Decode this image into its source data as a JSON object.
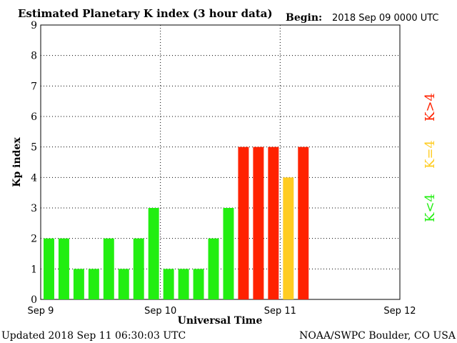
{
  "chart_data": {
    "type": "bar",
    "title": "Estimated Planetary K index (3 hour data)",
    "begin_label": "Begin:",
    "begin_value": "2018 Sep 09 0000 UTC",
    "xlabel": "Universal Time",
    "ylabel": "Kp index",
    "x_ticks": [
      "Sep 9",
      "Sep 10",
      "Sep 11",
      "Sep 12"
    ],
    "y_ticks": [
      "0",
      "1",
      "2",
      "3",
      "4",
      "5",
      "6",
      "7",
      "8",
      "9"
    ],
    "ylim": [
      0,
      9
    ],
    "slots_total": 24,
    "values": [
      2,
      2,
      1,
      1,
      2,
      1,
      2,
      3,
      1,
      1,
      1,
      2,
      3,
      5,
      5,
      5,
      4,
      5
    ],
    "grid": "dotted",
    "legend": [
      {
        "label": "K<4",
        "color": "#22ee11"
      },
      {
        "label": "K=4",
        "color": "#ffcc22"
      },
      {
        "label": "K>4",
        "color": "#ff2200"
      }
    ]
  },
  "footer": {
    "updated": "Updated 2018 Sep 11 06:30:03 UTC",
    "source": "NOAA/SWPC Boulder, CO USA"
  }
}
